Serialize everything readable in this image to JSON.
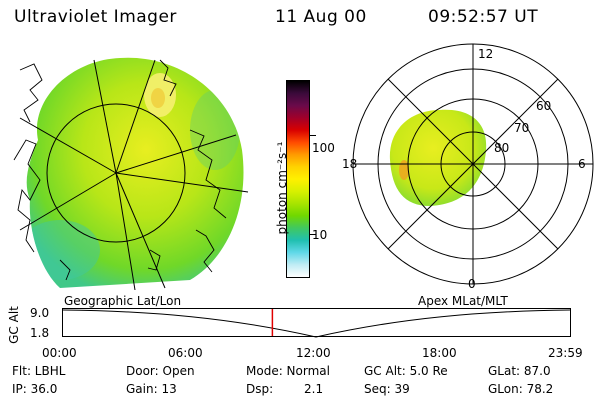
{
  "header": {
    "instrument": "Ultraviolet Imager",
    "date": "11 Aug 00",
    "time": "09:52:57 UT"
  },
  "colorbar": {
    "unit_label": "photon cm⁻²s⁻¹",
    "tick_100": "100",
    "tick_10": "10",
    "colors": [
      "#000000",
      "#3a0a3a",
      "#6a0a4a",
      "#a0002a",
      "#d80000",
      "#ff4a00",
      "#ff9a00",
      "#ffd200",
      "#fff000",
      "#d8f000",
      "#a8e400",
      "#70d800",
      "#40c860",
      "#20c0b0",
      "#60d8e8",
      "#c0ecf4",
      "#ffffff"
    ]
  },
  "geo_panel": {
    "label": "Geographic Lat/Lon"
  },
  "polar_panel": {
    "label": "Apex MLat/MLT",
    "mlt_12": "12",
    "mlt_18": "18",
    "mlt_6": "6",
    "mlt_0": "0",
    "lat_60": "60",
    "lat_70": "70",
    "lat_80": "80"
  },
  "altitude_plot": {
    "ylabel": "GC Alt",
    "ytick_top": "9.0",
    "ytick_bottom": "1.8",
    "x_ticks": [
      "00:00",
      "06:00",
      "12:00",
      "18:00",
      "23:59"
    ],
    "current_time_marker_fraction": 0.413
  },
  "info": {
    "filter": "Flt: LBHL",
    "ip": "IP: 36.0",
    "door": "Door: Open",
    "gain": "Gain: 13",
    "mode": "Mode: Normal",
    "dsp_label": "Dsp:",
    "dsp_value": "2.1",
    "gc_alt": "GC Alt: 5.0 Re",
    "seq": "Seq: 39",
    "glat": "GLat: 87.0",
    "glon": "GLon: 78.2"
  }
}
